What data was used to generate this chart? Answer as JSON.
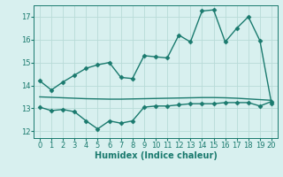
{
  "line1_x": [
    0,
    1,
    2,
    3,
    4,
    5,
    6,
    7,
    8,
    9,
    10,
    11,
    12,
    13,
    14,
    15,
    16,
    17,
    18,
    19,
    20
  ],
  "line1_y": [
    14.2,
    13.8,
    14.15,
    14.45,
    14.75,
    14.9,
    15.0,
    14.35,
    14.3,
    15.3,
    15.25,
    15.2,
    16.2,
    15.9,
    17.25,
    17.3,
    15.9,
    16.5,
    17.0,
    15.95,
    13.2
  ],
  "line2_x": [
    0,
    1,
    2,
    3,
    4,
    5,
    6,
    7,
    8,
    9,
    10,
    11,
    12,
    13,
    14,
    15,
    16,
    17,
    18,
    19,
    20
  ],
  "line2_y": [
    13.5,
    13.48,
    13.46,
    13.44,
    13.42,
    13.41,
    13.4,
    13.4,
    13.41,
    13.42,
    13.43,
    13.44,
    13.45,
    13.46,
    13.47,
    13.47,
    13.46,
    13.44,
    13.41,
    13.38,
    13.35
  ],
  "line3_x": [
    0,
    1,
    2,
    3,
    4,
    5,
    6,
    7,
    8,
    9,
    10,
    11,
    12,
    13,
    14,
    15,
    16,
    17,
    18,
    19,
    20
  ],
  "line3_y": [
    13.05,
    12.9,
    12.95,
    12.85,
    12.45,
    12.1,
    12.45,
    12.35,
    12.45,
    13.05,
    13.1,
    13.1,
    13.15,
    13.2,
    13.2,
    13.2,
    13.25,
    13.25,
    13.25,
    13.1,
    13.3
  ],
  "line_color": "#1a7a6e",
  "bg_color": "#d8f0ef",
  "grid_color": "#b8dbd8",
  "xlabel": "Humidex (Indice chaleur)",
  "ylim": [
    11.7,
    17.5
  ],
  "xlim": [
    -0.5,
    20.5
  ],
  "yticks": [
    12,
    13,
    14,
    15,
    16,
    17
  ],
  "xticks": [
    0,
    1,
    2,
    3,
    4,
    5,
    6,
    7,
    8,
    9,
    10,
    11,
    12,
    13,
    14,
    15,
    16,
    17,
    18,
    19,
    20
  ],
  "marker": "D",
  "markersize": 2.5,
  "linewidth": 1.0
}
